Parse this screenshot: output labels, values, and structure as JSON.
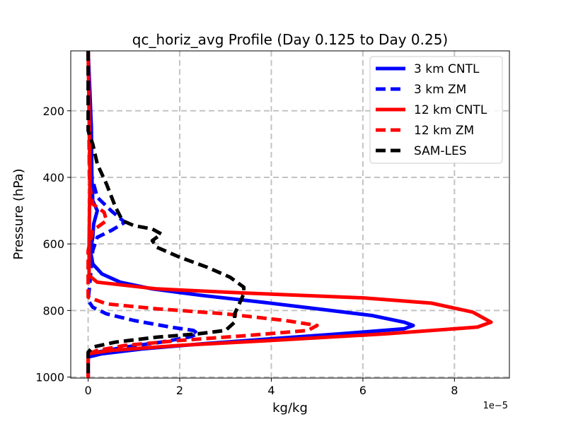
{
  "chart_data": {
    "type": "line",
    "title": "qc_horiz_avg Profile (Day 0.125 to Day 0.25)",
    "xlabel": "kg/kg",
    "ylabel": "Pressure (hPa)",
    "x_offset_label": "1e−5",
    "x_scale": 1e-05,
    "xlim": [
      -0.38,
      9.2
    ],
    "ylim": [
      1003,
      20
    ],
    "y_inverted": true,
    "xticks": [
      0,
      2,
      4,
      6,
      8
    ],
    "yticks": [
      200,
      400,
      600,
      800,
      1000
    ],
    "xtick_labels": [
      "0",
      "2",
      "4",
      "6",
      "8"
    ],
    "ytick_labels": [
      "200",
      "400",
      "600",
      "800",
      "1000"
    ],
    "grid": true,
    "legend_position": "top-right",
    "series": [
      {
        "name": "3 km CNTL",
        "color": "#0000ff",
        "style": "solid",
        "points": [
          [
            0,
            20
          ],
          [
            0.07,
            250
          ],
          [
            0.08,
            400
          ],
          [
            0.1,
            470
          ],
          [
            0.2,
            500
          ],
          [
            0.12,
            540
          ],
          [
            0.1,
            580
          ],
          [
            0.05,
            620
          ],
          [
            0.1,
            660
          ],
          [
            0.3,
            690
          ],
          [
            0.7,
            715
          ],
          [
            1.4,
            735
          ],
          [
            2.5,
            755
          ],
          [
            3.8,
            775
          ],
          [
            5.0,
            795
          ],
          [
            6.2,
            815
          ],
          [
            6.9,
            835
          ],
          [
            7.1,
            845
          ],
          [
            6.9,
            855
          ],
          [
            5.5,
            870
          ],
          [
            4.0,
            885
          ],
          [
            2.5,
            900
          ],
          [
            1.2,
            915
          ],
          [
            0.3,
            930
          ],
          [
            0,
            940
          ],
          [
            0,
            1003
          ]
        ]
      },
      {
        "name": "3 km ZM",
        "color": "#0000ff",
        "style": "dashed",
        "points": [
          [
            0,
            20
          ],
          [
            0.05,
            300
          ],
          [
            0.08,
            400
          ],
          [
            0.2,
            460
          ],
          [
            0.5,
            500
          ],
          [
            0.8,
            535
          ],
          [
            0.5,
            560
          ],
          [
            0.2,
            580
          ],
          [
            0.1,
            620
          ],
          [
            0.05,
            700
          ],
          [
            0,
            770
          ],
          [
            0.1,
            790
          ],
          [
            0.4,
            810
          ],
          [
            1.0,
            830
          ],
          [
            1.8,
            850
          ],
          [
            2.3,
            860
          ],
          [
            2.4,
            870
          ],
          [
            2.2,
            880
          ],
          [
            1.6,
            895
          ],
          [
            0.8,
            910
          ],
          [
            0.2,
            925
          ],
          [
            0,
            935
          ],
          [
            0,
            1003
          ]
        ]
      },
      {
        "name": "12 km CNTL",
        "color": "#ff0000",
        "style": "solid",
        "points": [
          [
            0,
            20
          ],
          [
            0.03,
            300
          ],
          [
            0.04,
            400
          ],
          [
            0.03,
            500
          ],
          [
            0.02,
            600
          ],
          [
            0.02,
            695
          ],
          [
            0.2,
            715
          ],
          [
            1.5,
            735
          ],
          [
            3.5,
            748
          ],
          [
            6.0,
            762
          ],
          [
            7.5,
            778
          ],
          [
            8.4,
            805
          ],
          [
            8.8,
            835
          ],
          [
            8.5,
            850
          ],
          [
            6.5,
            870
          ],
          [
            4.0,
            890
          ],
          [
            2.0,
            905
          ],
          [
            0.5,
            920
          ],
          [
            0,
            930
          ],
          [
            0,
            1003
          ]
        ]
      },
      {
        "name": "12 km ZM",
        "color": "#ff0000",
        "style": "dashed",
        "points": [
          [
            0,
            20
          ],
          [
            0.02,
            300
          ],
          [
            0.03,
            420
          ],
          [
            0.1,
            480
          ],
          [
            0.35,
            505
          ],
          [
            0.4,
            530
          ],
          [
            0.1,
            560
          ],
          [
            0,
            620
          ],
          [
            0,
            700
          ],
          [
            0,
            760
          ],
          [
            0.4,
            780
          ],
          [
            1.5,
            795
          ],
          [
            3.0,
            810
          ],
          [
            4.3,
            830
          ],
          [
            5.0,
            845
          ],
          [
            4.8,
            860
          ],
          [
            3.5,
            875
          ],
          [
            2.0,
            890
          ],
          [
            0.8,
            905
          ],
          [
            0.2,
            920
          ],
          [
            0,
            930
          ],
          [
            0,
            1003
          ]
        ]
      },
      {
        "name": "SAM-LES",
        "color": "#000000",
        "style": "dashed",
        "points": [
          [
            0,
            20
          ],
          [
            0,
            260
          ],
          [
            0.1,
            300
          ],
          [
            0.2,
            360
          ],
          [
            0.4,
            420
          ],
          [
            0.6,
            490
          ],
          [
            0.75,
            530
          ],
          [
            1.0,
            545
          ],
          [
            1.4,
            555
          ],
          [
            1.6,
            570
          ],
          [
            1.4,
            590
          ],
          [
            1.5,
            610
          ],
          [
            2.0,
            640
          ],
          [
            2.6,
            670
          ],
          [
            3.1,
            700
          ],
          [
            3.4,
            730
          ],
          [
            3.4,
            750
          ],
          [
            3.3,
            780
          ],
          [
            3.2,
            810
          ],
          [
            3.2,
            835
          ],
          [
            3.0,
            860
          ],
          [
            2.4,
            870
          ],
          [
            1.5,
            880
          ],
          [
            0.6,
            895
          ],
          [
            0.1,
            910
          ],
          [
            0,
            925
          ],
          [
            0,
            1003
          ]
        ]
      }
    ]
  }
}
